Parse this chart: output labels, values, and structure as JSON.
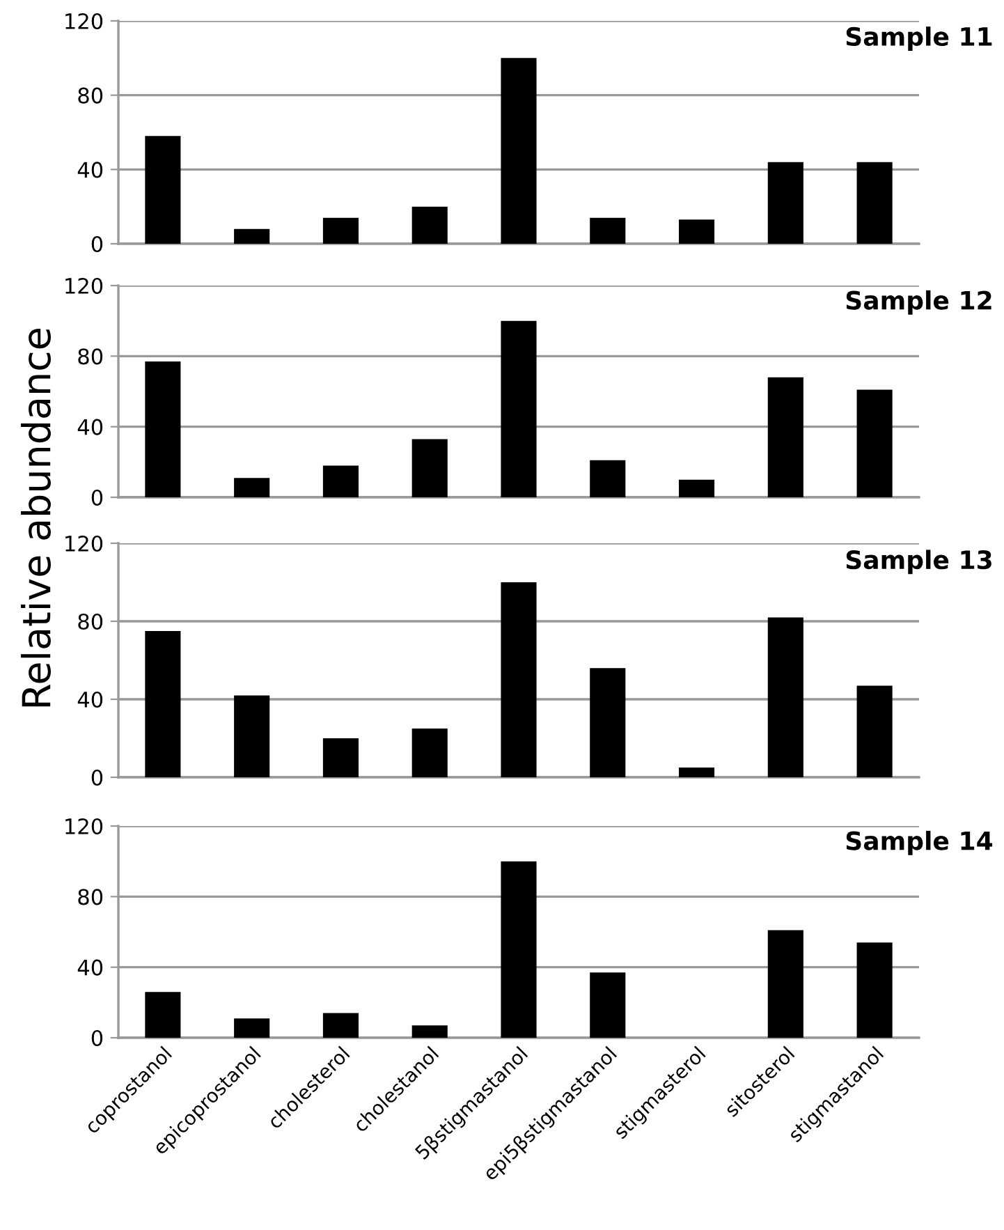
{
  "chart_data": [
    {
      "type": "bar",
      "title": "Sample 11",
      "categories": [
        null,
        null,
        null,
        null,
        null,
        null,
        null,
        null,
        null
      ],
      "values": [
        58,
        8,
        14,
        20,
        100,
        14,
        13,
        44,
        44
      ],
      "color": "#000000",
      "ylim": [
        0,
        120
      ],
      "yticks": [
        0,
        40,
        80,
        120
      ],
      "grid": "y",
      "tick_labels": "y"
    },
    {
      "type": "bar",
      "title": "Sample 12",
      "ylabel": "Relative abundance",
      "categories": [
        null,
        null,
        null,
        null,
        null,
        null,
        null,
        null,
        null
      ],
      "values": [
        77,
        11,
        18,
        33,
        100,
        21,
        10,
        68,
        61
      ],
      "color": "#000000",
      "ylim": [
        0,
        120
      ],
      "yticks": [
        0,
        40,
        80,
        120
      ],
      "grid": "y",
      "tick_labels": "y"
    },
    {
      "type": "bar",
      "title": "Sample 13",
      "categories": [
        null,
        null,
        null,
        null,
        null,
        null,
        null,
        null,
        null
      ],
      "values": [
        75,
        42,
        20,
        25,
        100,
        56,
        5,
        82,
        47
      ],
      "color": "#000000",
      "ylim": [
        0,
        120
      ],
      "yticks": [
        0,
        40,
        80,
        120
      ],
      "grid": "y",
      "tick_labels": "y"
    },
    {
      "type": "bar",
      "title": "Sample 14",
      "categories": [
        "coprostanol",
        "epicoprostanol",
        "cholesterol",
        "cholestanol",
        "5βstigmastanol",
        "epi5βstigmastanol",
        "stigmasterol",
        "sitosterol",
        "stigmastanol"
      ],
      "values": [
        26,
        11,
        14,
        7,
        100,
        37,
        0,
        61,
        54
      ],
      "color": "#000000",
      "ylim": [
        0,
        120
      ],
      "yticks": [
        0,
        40,
        80,
        120
      ],
      "grid": "y"
    }
  ]
}
